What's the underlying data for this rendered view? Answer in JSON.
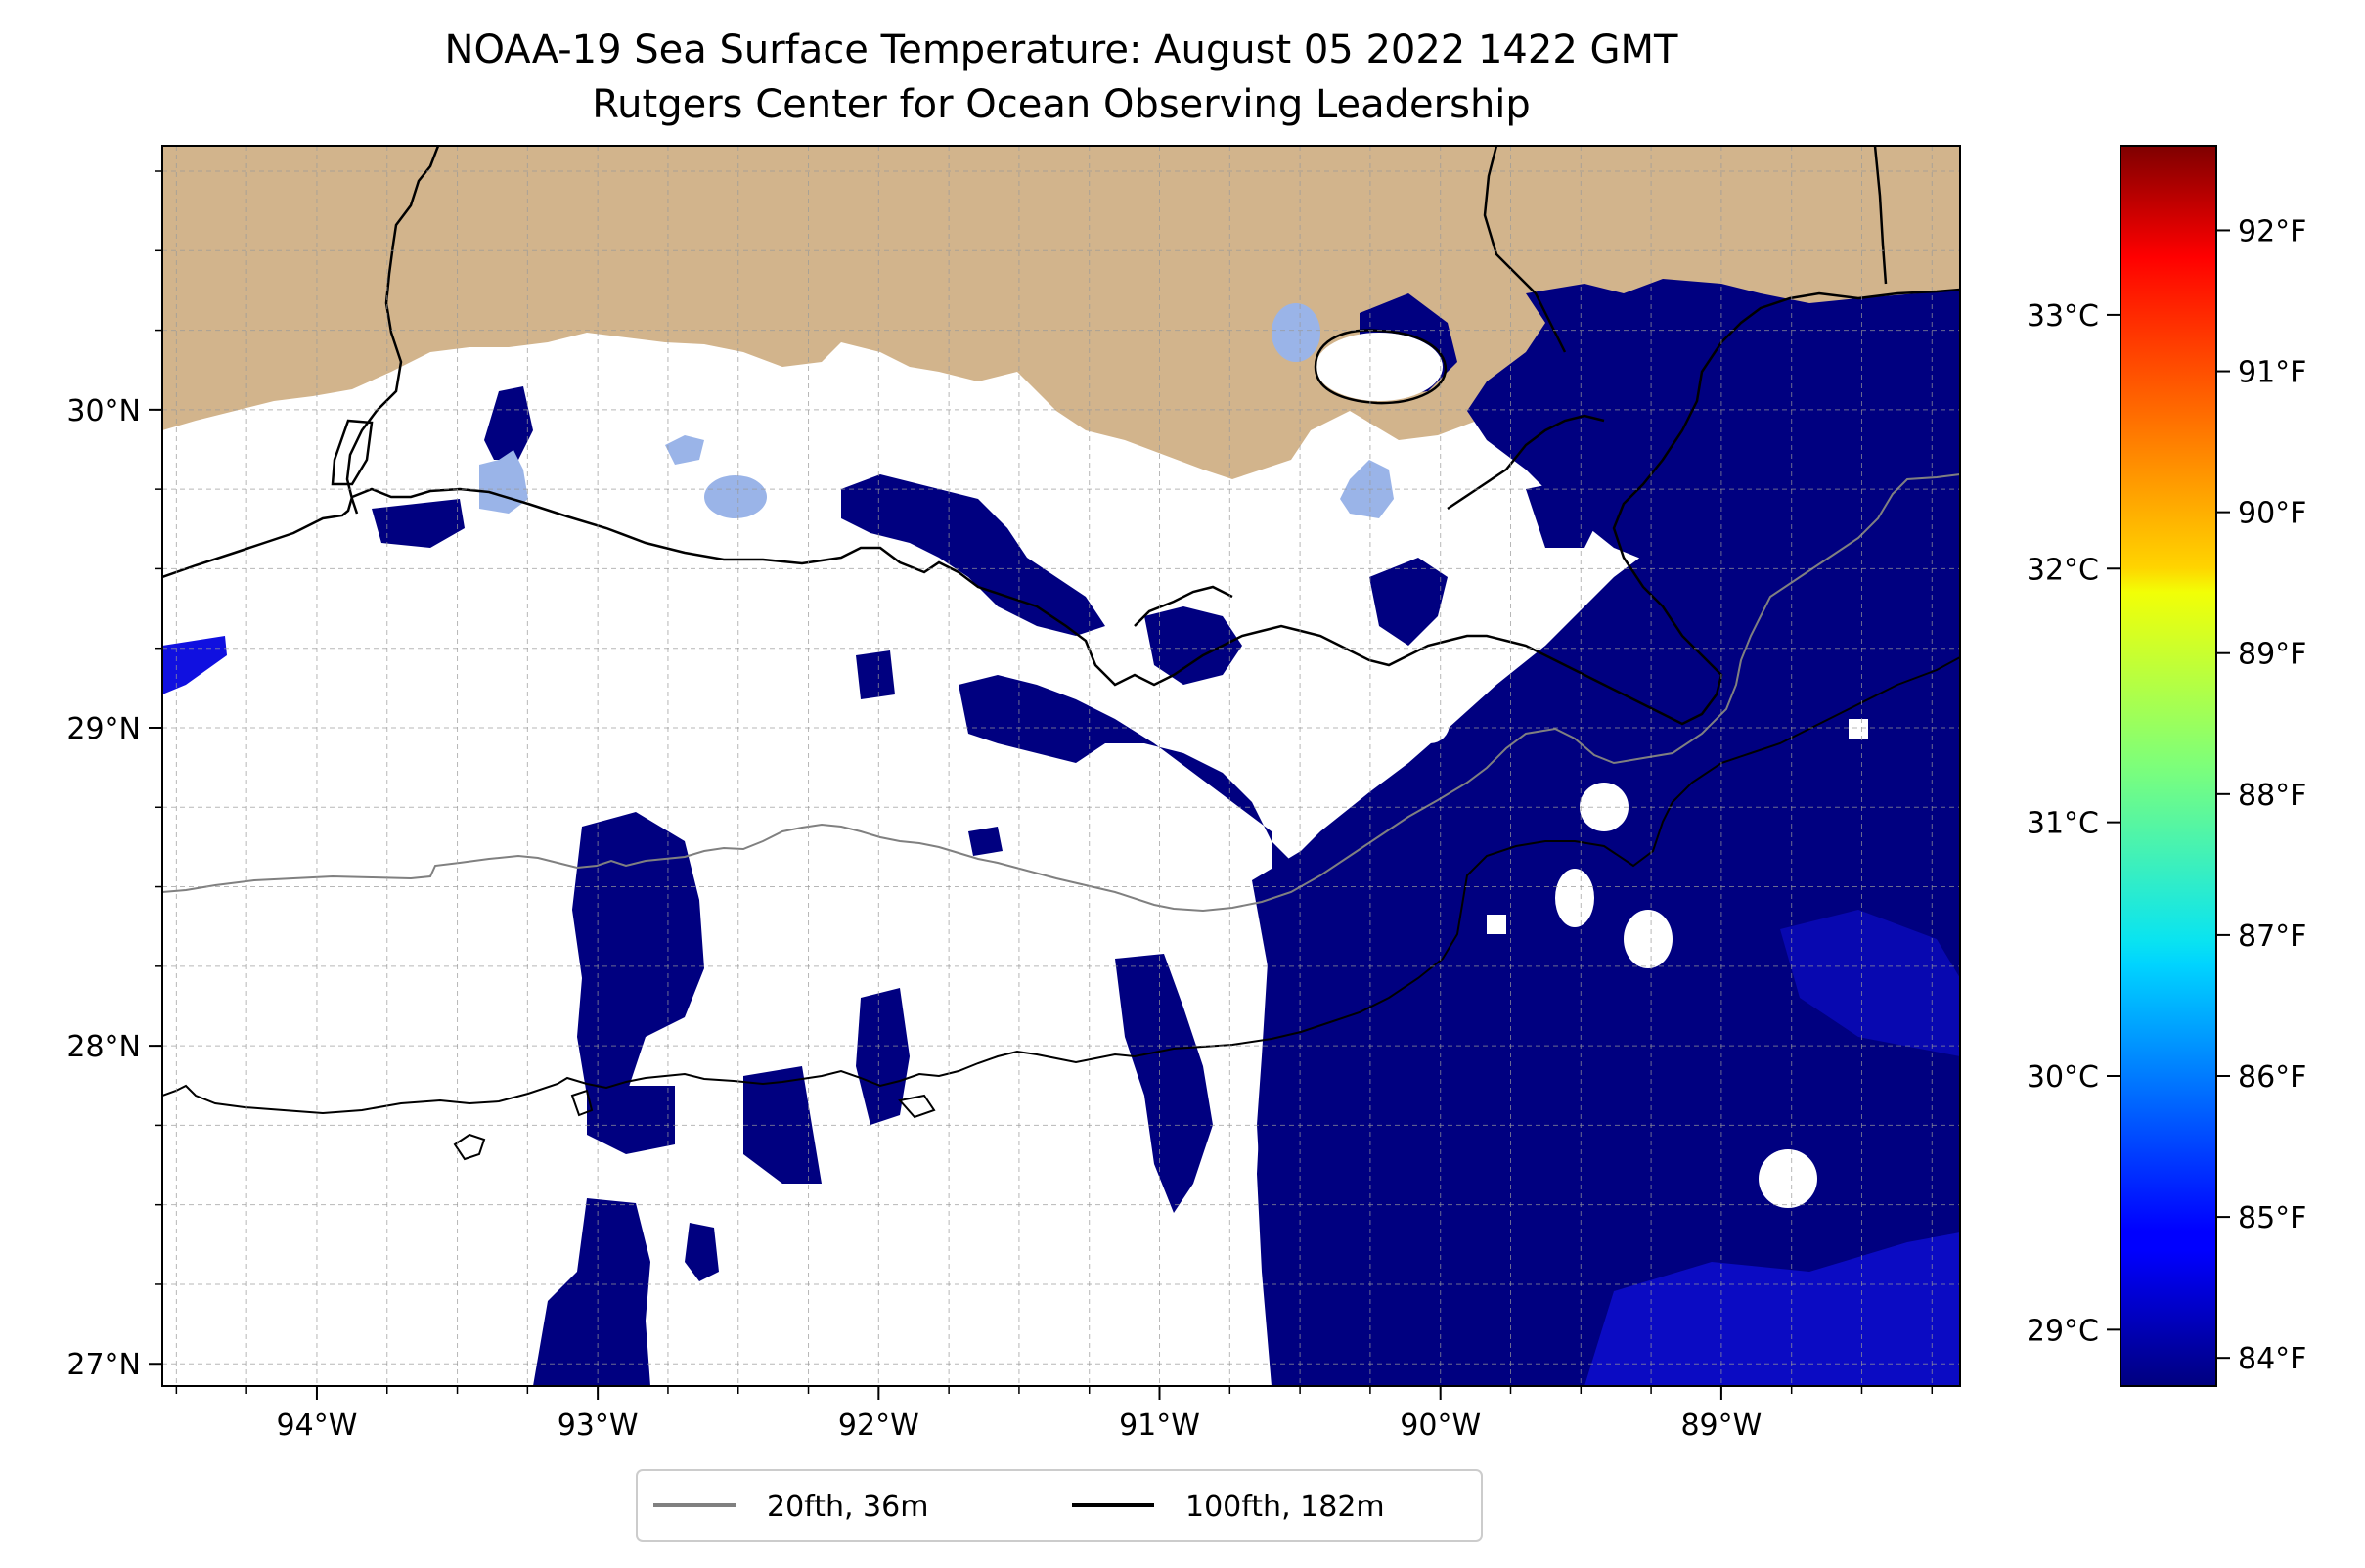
{
  "title": {
    "line1": "NOAA-19 Sea Surface Temperature: August 05 2022 1422 GMT",
    "line2": "Rutgers Center for Ocean Observing Leadership"
  },
  "map": {
    "lon_range": [
      -94.55,
      -88.15
    ],
    "lat_range": [
      26.93,
      30.83
    ],
    "lon_ticks": [
      {
        "value": -94,
        "label": "94°W"
      },
      {
        "value": -93,
        "label": "93°W"
      },
      {
        "value": -92,
        "label": "92°W"
      },
      {
        "value": -91,
        "label": "91°W"
      },
      {
        "value": -90,
        "label": "90°W"
      },
      {
        "value": -89,
        "label": "89°W"
      }
    ],
    "lat_ticks": [
      {
        "value": 27,
        "label": "27°N"
      },
      {
        "value": 28,
        "label": "28°N"
      },
      {
        "value": 29,
        "label": "29°N"
      },
      {
        "value": 30,
        "label": "30°N"
      }
    ],
    "grid": true,
    "colors": {
      "land": "#d2b48c",
      "sst_base": "#000080",
      "sst_warm": "#1010e0",
      "lake": "#9ab4e8",
      "cloud": "#ffffff"
    }
  },
  "legend": {
    "items": [
      {
        "label": "20fth, 36m",
        "color": "#808080"
      },
      {
        "label": "100fth, 182m",
        "color": "#000000"
      }
    ],
    "placement": "bottom-center"
  },
  "colorbar": {
    "colormap": "jet",
    "range_f": [
      83.8,
      92.6
    ],
    "fahrenheit_ticks": [
      {
        "value": 84,
        "label": "84°F"
      },
      {
        "value": 85,
        "label": "85°F"
      },
      {
        "value": 86,
        "label": "86°F"
      },
      {
        "value": 87,
        "label": "87°F"
      },
      {
        "value": 88,
        "label": "88°F"
      },
      {
        "value": 89,
        "label": "89°F"
      },
      {
        "value": 90,
        "label": "90°F"
      },
      {
        "value": 91,
        "label": "91°F"
      },
      {
        "value": 92,
        "label": "92°F"
      }
    ],
    "celsius_ticks": [
      {
        "value": 29,
        "label": "29°C"
      },
      {
        "value": 30,
        "label": "30°C"
      },
      {
        "value": 31,
        "label": "31°C"
      },
      {
        "value": 32,
        "label": "32°C"
      },
      {
        "value": 33,
        "label": "33°C"
      }
    ]
  }
}
